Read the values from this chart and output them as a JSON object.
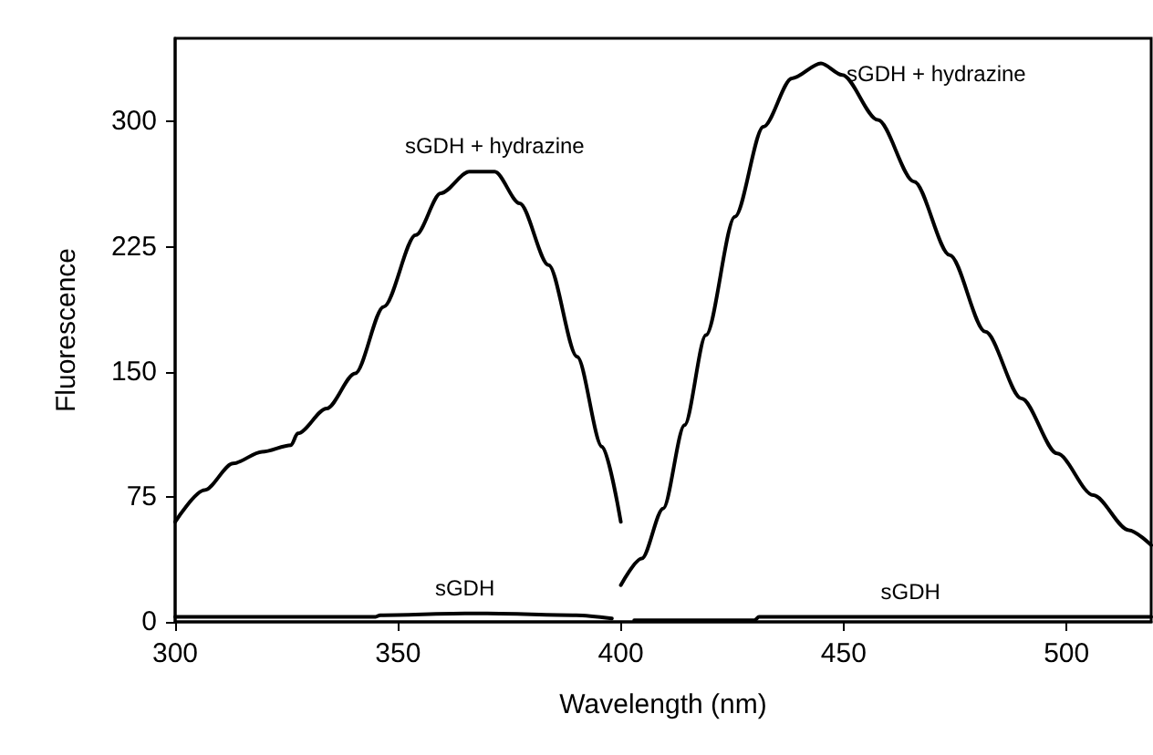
{
  "chart_data": {
    "type": "line",
    "xlabel": "Wavelength (nm)",
    "ylabel": "Fluorescence",
    "xlim": [
      300,
      519
    ],
    "xticks": [
      300,
      350,
      400,
      450,
      500
    ],
    "ylim": [
      0,
      350
    ],
    "yticks": [
      0,
      75,
      150,
      225,
      300
    ],
    "grid": false,
    "marker": "none",
    "line_style": "solid",
    "series": [
      {
        "name": "sGDH + hydrazine",
        "color": "#000000",
        "x": [
          300,
          306.6,
          313,
          319.5,
          326,
          327.5,
          334,
          340.4,
          346.8,
          354,
          359.6,
          366,
          371.7,
          377.3,
          383.8,
          390.2,
          395.8,
          400
        ],
        "values": [
          60,
          79,
          95,
          102,
          106,
          113,
          128,
          149,
          189,
          232,
          257,
          270,
          270,
          251,
          214,
          159,
          105,
          60
        ]
      },
      {
        "name": "sGDH + hydrazine",
        "color": "#000000",
        "x": [
          400,
          404.7,
          409.5,
          414.3,
          419.1,
          425.6,
          432,
          438.4,
          444.9,
          449.7,
          457.7,
          465.8,
          473.8,
          481.8,
          489.9,
          497.9,
          506,
          514,
          519
        ],
        "values": [
          22,
          38,
          68,
          118,
          172,
          243,
          297,
          326,
          335,
          328,
          301,
          264,
          220,
          174,
          134,
          101,
          76,
          55,
          46
        ]
      },
      {
        "name": "sGDH",
        "color": "#000000",
        "x": [
          300,
          345,
          346,
          365,
          370,
          390,
          398
        ],
        "values": [
          3,
          3,
          4,
          5,
          5,
          4,
          2
        ]
      },
      {
        "name": "sGDH",
        "color": "#000000",
        "x": [
          403,
          430,
          431,
          465,
          500,
          505,
          519
        ],
        "values": [
          1,
          1,
          3,
          3,
          3,
          3,
          3
        ]
      }
    ]
  }
}
